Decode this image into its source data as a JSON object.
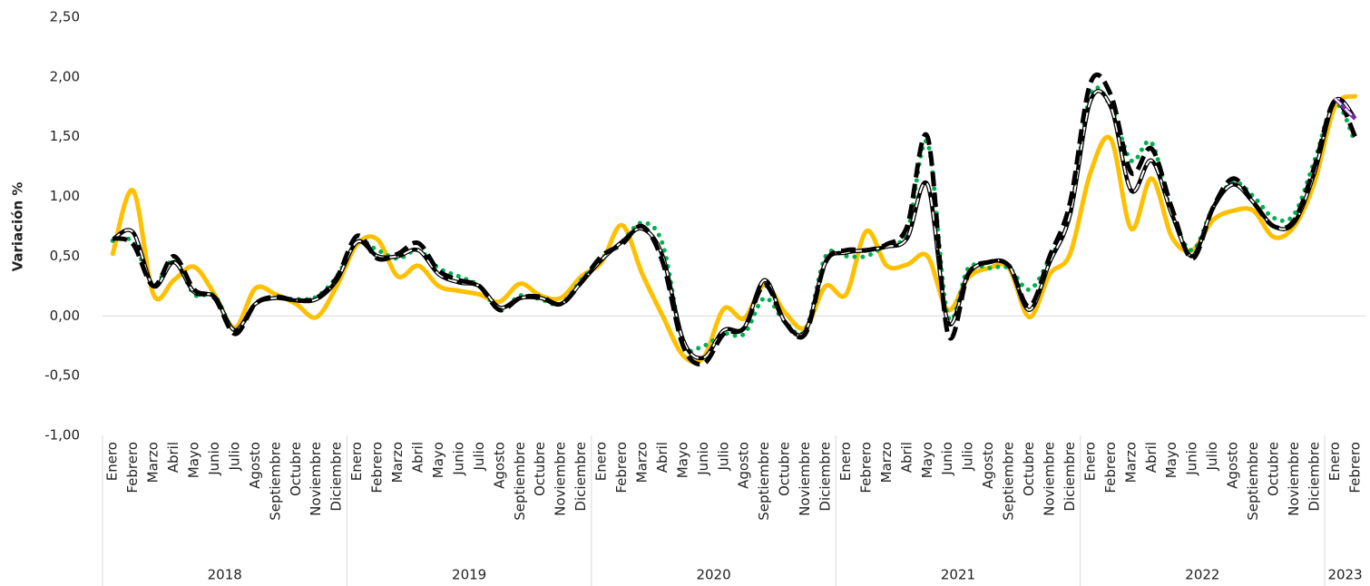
{
  "chart_data": {
    "type": "line",
    "y_label": "Variación %",
    "groups": [
      {
        "label": "2018",
        "categories": [
          "Enero",
          "Febrero",
          "Marzo",
          "Abril",
          "Mayo",
          "Junio",
          "Julio",
          "Agosto",
          "Septiembre",
          "Octubre",
          "Noviembre",
          "Diciembre"
        ]
      },
      {
        "label": "2019",
        "categories": [
          "Enero",
          "Febrero",
          "Marzo",
          "Abril",
          "Mayo",
          "Junio",
          "Julio",
          "Agosto",
          "Septiembre",
          "Octubre",
          "Noviembre",
          "Diciembre"
        ]
      },
      {
        "label": "2020",
        "categories": [
          "Enero",
          "Febrero",
          "Marzo",
          "Abril",
          "Mayo",
          "Junio",
          "Julio",
          "Agosto",
          "Septiembre",
          "Octubre",
          "Noviembre",
          "Diciembre"
        ]
      },
      {
        "label": "2021",
        "categories": [
          "Enero",
          "Febrero",
          "Marzo",
          "Abril",
          "Mayo",
          "Junio",
          "Julio",
          "Agosto",
          "Septiembre",
          "Octubre",
          "Noviembre",
          "Diciembre"
        ]
      },
      {
        "label": "2022",
        "categories": [
          "Enero",
          "Febrero",
          "Marzo",
          "Abril",
          "Mayo",
          "Junio",
          "Julio",
          "Agosto",
          "Septiembre",
          "Octubre",
          "Noviembre",
          "Diciembre"
        ]
      },
      {
        "label": "2023",
        "categories": [
          "Enero",
          "Febrero"
        ]
      }
    ],
    "series": [
      {
        "color": "#FFC000",
        "style": "solid",
        "values": [
          0.52,
          1.05,
          0.18,
          0.3,
          0.41,
          0.18,
          -0.1,
          0.23,
          0.18,
          0.1,
          -0.01,
          0.25,
          0.6,
          0.64,
          0.33,
          0.42,
          0.25,
          0.21,
          0.18,
          0.12,
          0.27,
          0.17,
          0.15,
          0.33,
          0.45,
          0.76,
          0.35,
          0.0,
          -0.33,
          -0.35,
          0.06,
          -0.02,
          0.26,
          0.03,
          -0.1,
          0.25,
          0.18,
          0.71,
          0.42,
          0.43,
          0.5,
          0.05,
          0.32,
          0.4,
          0.4,
          -0.01,
          0.35,
          0.52,
          1.2,
          1.48,
          0.73,
          1.15,
          0.66,
          0.55,
          0.8,
          0.88,
          0.88,
          0.66,
          0.75,
          1.12,
          1.75,
          1.84
        ]
      },
      {
        "color": "#00B050",
        "style": "dotted",
        "values": [
          0.63,
          0.62,
          0.26,
          0.47,
          0.18,
          0.17,
          -0.12,
          0.1,
          0.15,
          0.14,
          0.16,
          0.33,
          0.62,
          0.55,
          0.48,
          0.55,
          0.4,
          0.33,
          0.25,
          0.05,
          0.17,
          0.14,
          0.1,
          0.3,
          0.48,
          0.62,
          0.78,
          0.6,
          -0.22,
          -0.25,
          -0.15,
          -0.15,
          0.15,
          -0.05,
          -0.12,
          0.5,
          0.5,
          0.5,
          0.6,
          0.7,
          1.45,
          0.0,
          0.4,
          0.4,
          0.4,
          0.22,
          0.48,
          0.85,
          1.85,
          1.75,
          1.3,
          1.45,
          0.85,
          0.55,
          0.9,
          1.12,
          1.0,
          0.82,
          0.85,
          1.3,
          1.78,
          1.45
        ]
      },
      {
        "color": "#000000",
        "style": "outlined-dash",
        "values": [
          0.64,
          0.7,
          0.25,
          0.45,
          0.2,
          0.16,
          -0.12,
          0.1,
          0.15,
          0.13,
          0.14,
          0.3,
          0.62,
          0.5,
          0.5,
          0.55,
          0.35,
          0.28,
          0.25,
          0.07,
          0.15,
          0.15,
          0.1,
          0.28,
          0.47,
          0.62,
          0.73,
          0.5,
          -0.2,
          -0.35,
          -0.12,
          -0.1,
          0.3,
          -0.05,
          -0.13,
          0.45,
          0.53,
          0.55,
          0.58,
          0.65,
          1.1,
          -0.05,
          0.35,
          0.45,
          0.42,
          0.05,
          0.45,
          0.85,
          1.8,
          1.75,
          1.05,
          1.3,
          0.85,
          0.5,
          0.9,
          1.1,
          0.95,
          0.75,
          0.78,
          1.2,
          1.8,
          1.65
        ]
      },
      {
        "color": "#000000",
        "style": "dashed",
        "values": [
          0.65,
          0.6,
          0.25,
          0.5,
          0.22,
          0.15,
          -0.15,
          0.1,
          0.16,
          0.13,
          0.15,
          0.32,
          0.67,
          0.48,
          0.52,
          0.61,
          0.38,
          0.3,
          0.25,
          0.05,
          0.15,
          0.16,
          0.1,
          0.28,
          0.5,
          0.6,
          0.75,
          0.45,
          -0.25,
          -0.4,
          -0.15,
          -0.1,
          0.26,
          -0.05,
          -0.15,
          0.45,
          0.55,
          0.55,
          0.6,
          0.75,
          1.5,
          -0.15,
          0.35,
          0.45,
          0.42,
          0.08,
          0.5,
          0.95,
          1.95,
          1.85,
          1.2,
          1.4,
          0.9,
          0.48,
          0.9,
          1.15,
          0.95,
          0.75,
          0.8,
          1.25,
          1.8,
          1.5
        ]
      },
      {
        "color": "#7030A0",
        "style": "outlined-dash",
        "values": [
          null,
          null,
          null,
          null,
          null,
          null,
          null,
          null,
          null,
          null,
          null,
          null,
          null,
          null,
          null,
          null,
          null,
          null,
          null,
          null,
          null,
          null,
          null,
          null,
          null,
          null,
          null,
          null,
          null,
          null,
          null,
          null,
          null,
          null,
          null,
          null,
          null,
          null,
          null,
          null,
          null,
          null,
          null,
          null,
          null,
          null,
          null,
          null,
          null,
          null,
          null,
          null,
          null,
          null,
          null,
          null,
          null,
          null,
          null,
          null,
          1.82,
          1.65
        ]
      }
    ],
    "ylim": [
      -1,
      2.5
    ],
    "yticks": [
      {
        "value": -1,
        "label": "-1,00"
      },
      {
        "value": -0.5,
        "label": "-0,50"
      },
      {
        "value": 0,
        "label": "0,00"
      },
      {
        "value": 0.5,
        "label": "0,50"
      },
      {
        "value": 1,
        "label": "1,00"
      },
      {
        "value": 1.5,
        "label": "1,50"
      },
      {
        "value": 2,
        "label": "2,00"
      },
      {
        "value": 2.5,
        "label": "2,50"
      }
    ],
    "grid": false
  }
}
